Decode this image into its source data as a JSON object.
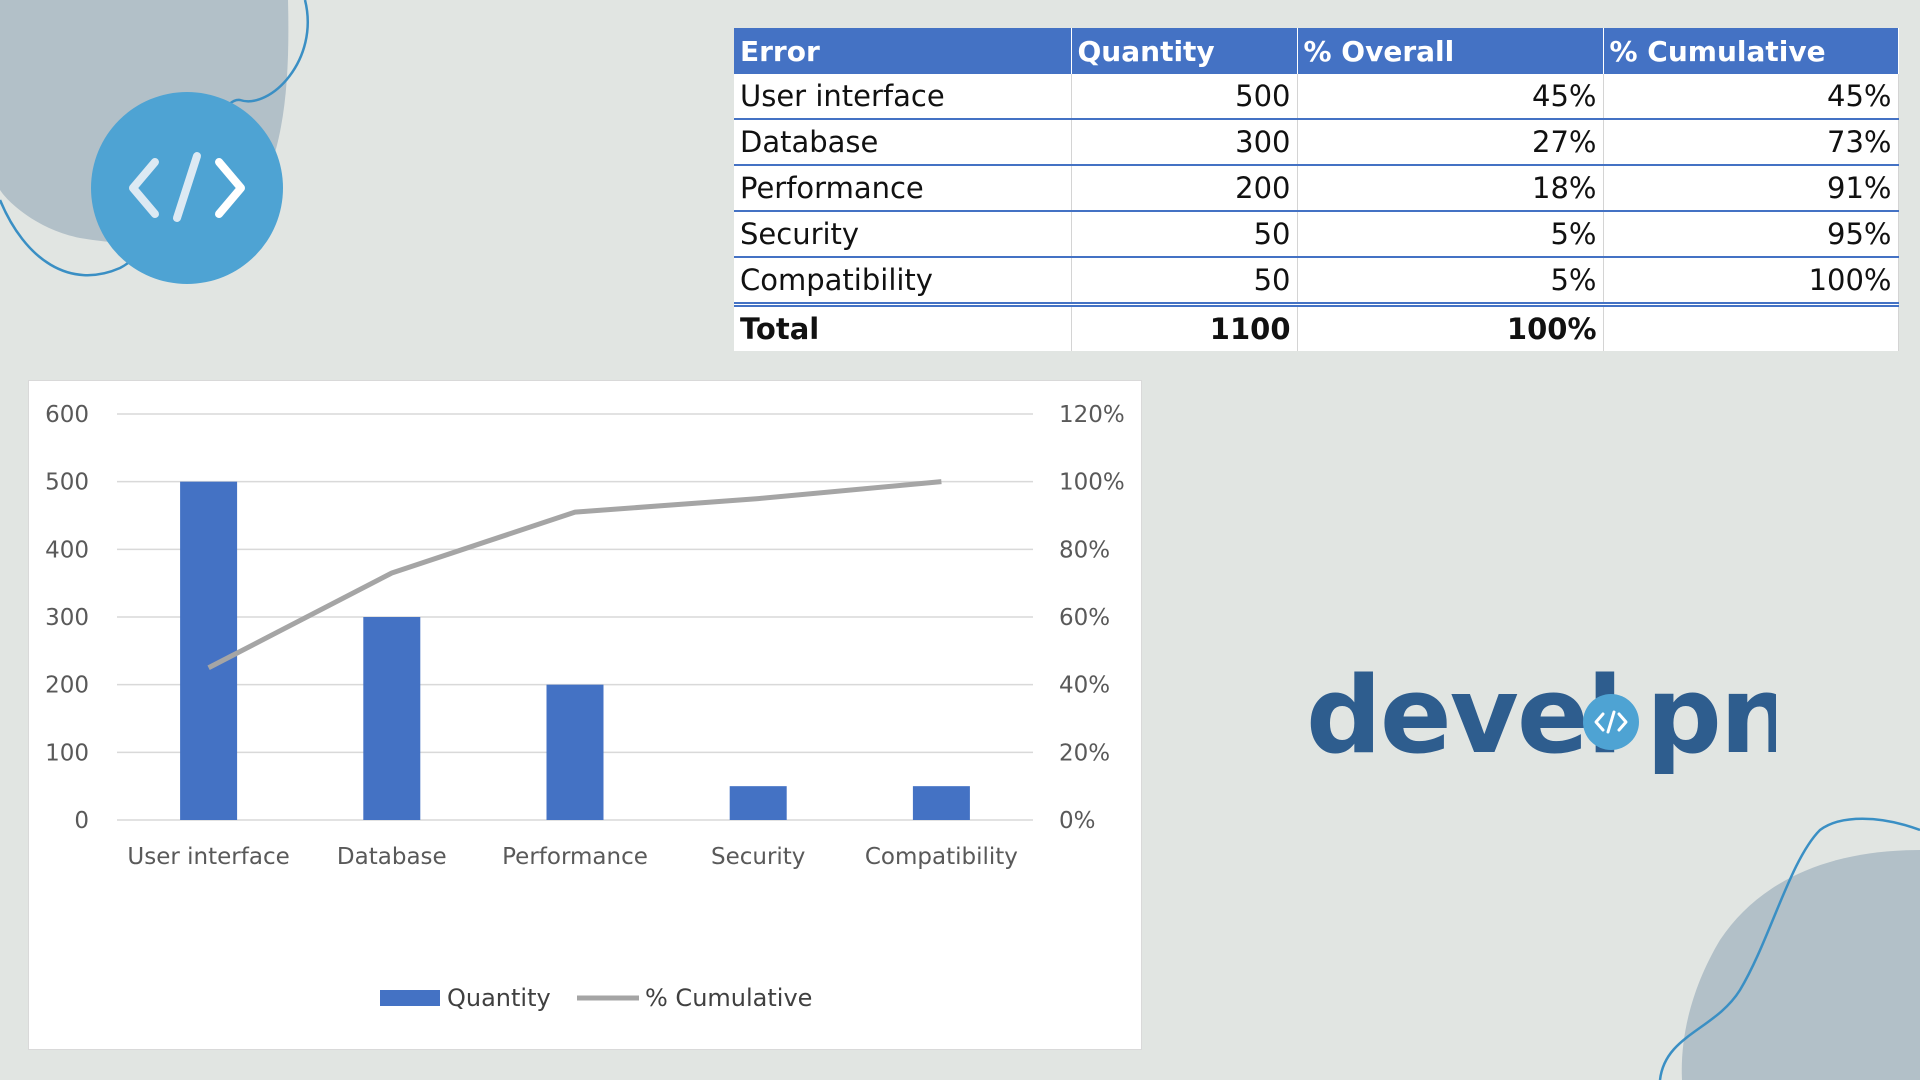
{
  "table": {
    "headers": [
      "Error",
      "Quantity",
      "% Overall",
      "% Cumulative"
    ],
    "rows": [
      [
        "User interface",
        "500",
        "45%",
        "45%"
      ],
      [
        "Database",
        "300",
        "27%",
        "73%"
      ],
      [
        "Performance",
        "200",
        "18%",
        "91%"
      ],
      [
        "Security",
        "50",
        "5%",
        "95%"
      ],
      [
        "Compatibility",
        "50",
        "5%",
        "100%"
      ]
    ],
    "total": [
      "Total",
      "1100",
      "100%",
      ""
    ]
  },
  "chart_data": {
    "type": "bar",
    "categories": [
      "User interface",
      "Database",
      "Performance",
      "Security",
      "Compatibility"
    ],
    "series": [
      {
        "name": "Quantity",
        "type": "bar",
        "axis": "left",
        "values": [
          500,
          300,
          200,
          50,
          50
        ]
      },
      {
        "name": "% Cumulative",
        "type": "line",
        "axis": "right",
        "values": [
          45,
          73,
          91,
          95,
          100
        ]
      }
    ],
    "y_left": {
      "ylim": [
        0,
        600
      ],
      "ticks": [
        "0",
        "100",
        "200",
        "300",
        "400",
        "500",
        "600"
      ]
    },
    "y_right": {
      "ylim": [
        0,
        120
      ],
      "ticks": [
        "0%",
        "20%",
        "40%",
        "60%",
        "80%",
        "100%",
        "120%"
      ]
    },
    "title": "",
    "xlabel": "",
    "ylabel": "",
    "grid": true,
    "legend": "bottom",
    "colors": {
      "bar": "#4472c4",
      "line": "#a5a5a5"
    }
  },
  "logo": {
    "text_left": "devel",
    "text_right": "pn",
    "color": "#2e5d8e",
    "accent": "#4ea3d3"
  },
  "icons": [
    "code-icon"
  ]
}
